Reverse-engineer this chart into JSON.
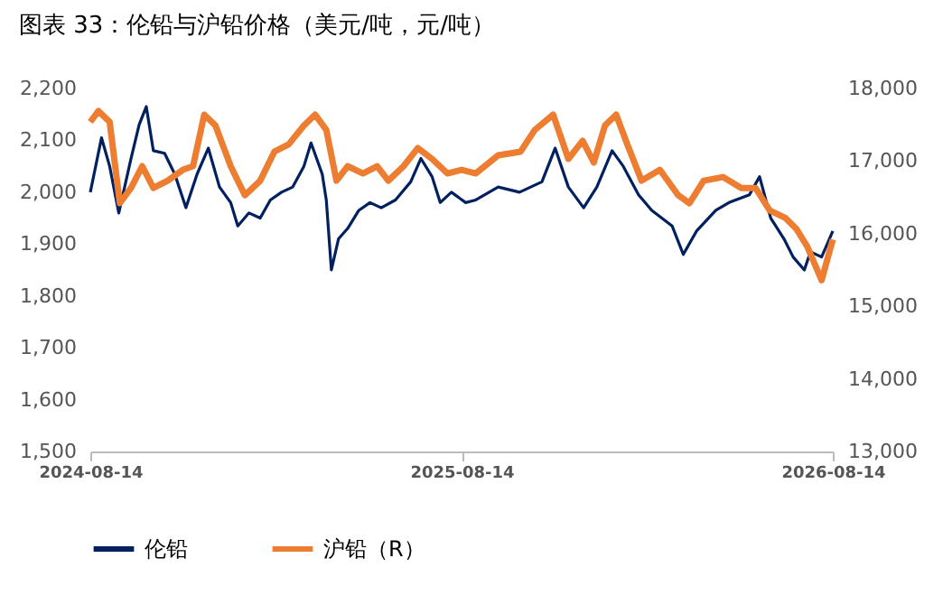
{
  "chart_data": {
    "type": "line",
    "title": "图表 33：伦铅与沪铅价格（美元/吨，元/吨）",
    "xlim": [
      "2024-08-14",
      "2026-08-14"
    ],
    "xticks": [
      "2024-08-14",
      "2025-08-14",
      "2026-08-14"
    ],
    "ylim": [
      1500,
      2200
    ],
    "yticks": [
      {
        "value": 1500,
        "label": "1,500"
      },
      {
        "value": 1600,
        "label": "1,600"
      },
      {
        "value": 1700,
        "label": "1,700"
      },
      {
        "value": 1800,
        "label": "1,800"
      },
      {
        "value": 1900,
        "label": "1,900"
      },
      {
        "value": 2000,
        "label": "2,000"
      },
      {
        "value": 2100,
        "label": "2,100"
      },
      {
        "value": 2200,
        "label": "2,200"
      }
    ],
    "y2lim": [
      13000,
      18000
    ],
    "y2ticks": [
      {
        "value": 13000,
        "label": "13,000"
      },
      {
        "value": 14000,
        "label": "14,000"
      },
      {
        "value": 15000,
        "label": "15,000"
      },
      {
        "value": 16000,
        "label": "16,000"
      },
      {
        "value": 17000,
        "label": "17,000"
      },
      {
        "value": 18000,
        "label": "18,000"
      }
    ],
    "grid": false,
    "legend": "bottom",
    "series": [
      {
        "name": "伦铅",
        "color": "#002060",
        "x": [
          "2024-08-14",
          "2024-08-25",
          "2024-09-02",
          "2024-09-11",
          "2024-09-23",
          "2024-10-01",
          "2024-10-08",
          "2024-10-15",
          "2024-10-26",
          "2024-11-05",
          "2024-11-16",
          "2024-11-27",
          "2024-12-08",
          "2024-12-19",
          "2024-12-30",
          "2025-01-06",
          "2025-01-17",
          "2025-01-28",
          "2025-02-07",
          "2025-02-18",
          "2025-03-01",
          "2025-03-12",
          "2025-03-19",
          "2025-03-30",
          "2025-04-03",
          "2025-04-08",
          "2025-04-15",
          "2025-04-24",
          "2025-05-05",
          "2025-05-16",
          "2025-05-27",
          "2025-06-10",
          "2025-06-25",
          "2025-07-05",
          "2025-07-16",
          "2025-07-24",
          "2025-08-04",
          "2025-08-18",
          "2025-08-28",
          "2025-09-19",
          "2025-10-10",
          "2025-11-01",
          "2025-11-14",
          "2025-11-27",
          "2025-12-12",
          "2025-12-25",
          "2026-01-09",
          "2026-01-20",
          "2026-02-04",
          "2026-02-17",
          "2026-03-09",
          "2026-03-20",
          "2026-04-02",
          "2026-04-21",
          "2026-05-04",
          "2026-05-24",
          "2026-06-03",
          "2026-06-14",
          "2026-06-27",
          "2026-07-06",
          "2026-07-17",
          "2026-07-23",
          "2026-08-03",
          "2026-08-14"
        ],
        "values": [
          2000,
          2105,
          2050,
          1960,
          2065,
          2130,
          2165,
          2080,
          2075,
          2035,
          1970,
          2035,
          2085,
          2010,
          1980,
          1935,
          1960,
          1950,
          1985,
          2000,
          2010,
          2050,
          2095,
          2035,
          1985,
          1850,
          1910,
          1930,
          1965,
          1980,
          1970,
          1985,
          2020,
          2065,
          2030,
          1980,
          2000,
          1980,
          1985,
          2010,
          2000,
          2020,
          2085,
          2010,
          1970,
          2010,
          2080,
          2050,
          1995,
          1965,
          1935,
          1880,
          1925,
          1965,
          1980,
          1995,
          2030,
          1950,
          1910,
          1875,
          1850,
          1885,
          1875,
          1925
        ]
      },
      {
        "name": "沪铅（R）",
        "color": "#ED7D31",
        "axis": "y2",
        "x": [
          "2024-08-14",
          "2024-08-22",
          "2024-09-02",
          "2024-09-12",
          "2024-09-23",
          "2024-10-04",
          "2024-10-15",
          "2024-10-29",
          "2024-11-13",
          "2024-11-23",
          "2024-12-04",
          "2024-12-15",
          "2024-12-30",
          "2025-01-13",
          "2025-01-28",
          "2025-02-11",
          "2025-02-25",
          "2025-03-12",
          "2025-03-23",
          "2025-04-03",
          "2025-04-13",
          "2025-04-24",
          "2025-05-09",
          "2025-05-23",
          "2025-06-03",
          "2025-06-18",
          "2025-07-02",
          "2025-07-16",
          "2025-07-31",
          "2025-08-14",
          "2025-08-28",
          "2025-09-19",
          "2025-10-11",
          "2025-10-25",
          "2025-11-12",
          "2025-11-27",
          "2025-12-11",
          "2025-12-22",
          "2026-01-02",
          "2026-01-13",
          "2026-01-24",
          "2026-02-07",
          "2026-02-25",
          "2026-03-15",
          "2026-03-26",
          "2026-04-09",
          "2026-04-28",
          "2026-05-16",
          "2026-05-30",
          "2026-06-13",
          "2026-06-28",
          "2026-07-09",
          "2026-07-20",
          "2026-08-03",
          "2026-08-14"
        ],
        "values": [
          17540,
          17690,
          17540,
          16420,
          16630,
          16930,
          16630,
          16730,
          16880,
          16930,
          17640,
          17490,
          16930,
          16530,
          16730,
          17130,
          17230,
          17490,
          17640,
          17430,
          16730,
          16930,
          16830,
          16930,
          16730,
          16930,
          17180,
          17030,
          16830,
          16880,
          16830,
          17080,
          17130,
          17430,
          17640,
          17030,
          17280,
          16980,
          17490,
          17640,
          17230,
          16730,
          16880,
          16530,
          16420,
          16730,
          16780,
          16630,
          16630,
          16320,
          16220,
          16070,
          15820,
          15360,
          15920
        ]
      }
    ]
  }
}
